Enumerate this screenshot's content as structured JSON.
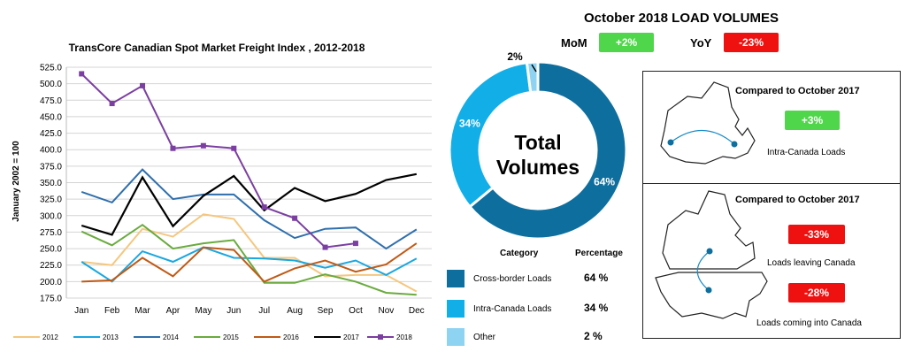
{
  "chart_data": [
    {
      "type": "line",
      "title": "TransCore Canadian Spot Market Freight Index , 2012-2018",
      "ylabel": "January  2002 = 100",
      "xlabel": "",
      "ylim": [
        175,
        525
      ],
      "yticks": [
        "525.0",
        "500.0",
        "475.0",
        "450.0",
        "425.0",
        "400.0",
        "375.0",
        "350.0",
        "325.0",
        "300.0",
        "275.0",
        "250.0",
        "225.0",
        "200.0",
        "175.0"
      ],
      "grid": true,
      "legend": "bottom",
      "categories": [
        "Jan",
        "Feb",
        "Mar",
        "Apr",
        "May",
        "Jun",
        "Jul",
        "Aug",
        "Sep",
        "Oct",
        "Nov",
        "Dec"
      ],
      "series": [
        {
          "name": "2012",
          "color": "#f5c77e",
          "values": [
            230,
            225,
            280,
            268,
            302,
            295,
            236,
            236,
            208,
            210,
            210,
            185
          ]
        },
        {
          "name": "2013",
          "color": "#1aa7e0",
          "values": [
            230,
            200,
            246,
            230,
            252,
            236,
            235,
            232,
            221,
            232,
            210,
            235
          ]
        },
        {
          "name": "2014",
          "color": "#2f6fad",
          "values": [
            336,
            320,
            370,
            325,
            332,
            332,
            293,
            266,
            280,
            282,
            250,
            279
          ]
        },
        {
          "name": "2015",
          "color": "#6aab3e",
          "values": [
            276,
            255,
            286,
            250,
            258,
            263,
            198,
            198,
            211,
            200,
            183,
            180
          ]
        },
        {
          "name": "2016",
          "color": "#c05a16",
          "values": [
            200,
            202,
            236,
            208,
            252,
            248,
            200,
            220,
            232,
            215,
            226,
            258
          ]
        },
        {
          "name": "2017",
          "color": "#000000",
          "values": [
            285,
            271,
            358,
            284,
            330,
            360,
            308,
            342,
            322,
            333,
            354,
            363
          ]
        },
        {
          "name": "2018",
          "color": "#7b3fa1",
          "values": [
            515,
            470,
            497,
            402,
            406,
            402,
            313,
            296,
            252,
            258,
            null,
            null
          ]
        }
      ]
    },
    {
      "type": "pie",
      "title": "Total Volumes",
      "categories": [
        "Cross-border Loads",
        "Intra-Canada Loads",
        "Other"
      ],
      "values": [
        64,
        34,
        2
      ],
      "slice_labels": [
        "64%",
        "34%",
        "2%"
      ],
      "colors": [
        "#0e6e9e",
        "#12aee8",
        "#8fd3f2"
      ],
      "legend": "bottom"
    }
  ],
  "headline": "October 2018 LOAD VOLUMES",
  "mom": {
    "label": "MoM",
    "value": "+2%"
  },
  "yoy": {
    "label": "YoY",
    "value": "-23%"
  },
  "donut_center": {
    "line1": "Total",
    "line2": "Volumes"
  },
  "legend": {
    "category_header": "Category",
    "percentage_header": "Percentage",
    "rows": [
      {
        "name": "Cross-border Loads",
        "pct": "64 %"
      },
      {
        "name": "Intra-Canada Loads",
        "pct": "34 %"
      },
      {
        "name": "Other",
        "pct": "2 %"
      }
    ]
  },
  "panel_intra": {
    "title": "Compared to October 2017",
    "badge": "+3%",
    "caption": "Intra-Canada Loads"
  },
  "panel_cross": {
    "title": "Compared to October 2017",
    "leaving_badge": "-33%",
    "leaving_caption": "Loads leaving Canada",
    "coming_badge": "-28%",
    "coming_caption": "Loads coming into Canada"
  }
}
